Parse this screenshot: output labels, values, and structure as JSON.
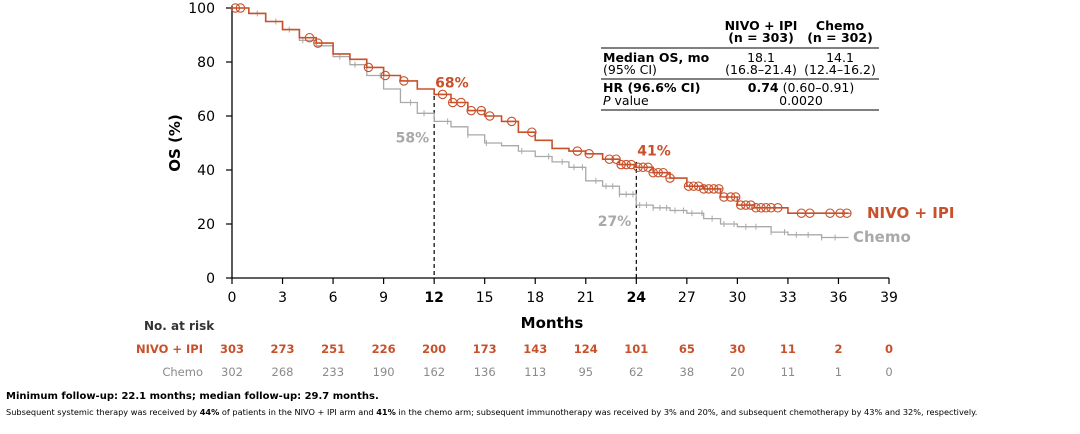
{
  "chart_data": {
    "type": "line",
    "subtype": "kaplan-meier",
    "ylabel": "OS (%)",
    "xlabel": "Months",
    "ylim": [
      0,
      100
    ],
    "xlim": [
      0,
      39
    ],
    "yticks": [
      0,
      20,
      40,
      60,
      80,
      100
    ],
    "xticks": [
      0,
      3,
      6,
      9,
      12,
      15,
      18,
      21,
      24,
      27,
      30,
      33,
      36,
      39
    ],
    "bold_xticks": [
      12,
      24
    ],
    "colors": {
      "nivo": "#c8502a",
      "chemo": "#a9a9a9"
    },
    "series": [
      {
        "name": "NIVO + IPI",
        "key": "nivo",
        "x": [
          0,
          0.5,
          1,
          2,
          3,
          4,
          5,
          6,
          7,
          8,
          9,
          10,
          11,
          12,
          13,
          14,
          15,
          16,
          17,
          18,
          19,
          20,
          21,
          22,
          23,
          24,
          25,
          26,
          27,
          28,
          29,
          30,
          31,
          32,
          33,
          34,
          35,
          36.6
        ],
        "values": [
          100,
          100,
          98,
          95,
          92,
          89,
          87,
          83,
          81,
          78,
          75,
          73,
          70,
          68,
          65,
          62,
          60,
          58,
          54,
          51,
          48,
          47,
          46,
          44,
          42,
          41,
          39,
          37,
          34,
          33,
          30,
          27,
          26,
          26,
          24,
          24,
          24,
          24
        ],
        "censor_x": [
          0.2,
          0.5,
          4.6,
          5.1,
          8.1,
          9.1,
          10.2,
          12.5,
          13.1,
          13.6,
          14.2,
          14.8,
          15.3,
          16.6,
          17.8,
          20.5,
          21.2,
          22.4,
          22.8,
          23.1,
          23.4,
          23.7,
          24.1,
          24.4,
          24.7,
          25.0,
          25.3,
          25.6,
          26.0,
          27.1,
          27.4,
          27.7,
          28.0,
          28.3,
          28.6,
          28.9,
          29.2,
          29.6,
          29.9,
          30.2,
          30.5,
          30.8,
          31.1,
          31.4,
          31.7,
          32.0,
          32.4,
          33.8,
          34.3,
          35.5,
          36.1,
          36.5
        ],
        "end_label": "NIVO + IPI",
        "landmarks": [
          {
            "month": 12,
            "value": 68,
            "label": "68%"
          },
          {
            "month": 24,
            "value": 41,
            "label": "41%"
          }
        ]
      },
      {
        "name": "Chemo",
        "key": "chemo",
        "x": [
          0,
          0.5,
          1,
          2,
          3,
          4,
          5,
          6,
          7,
          8,
          9,
          10,
          11,
          12,
          13,
          14,
          15,
          16,
          17,
          18,
          19,
          20,
          21,
          22,
          23,
          24,
          25,
          26,
          27,
          28,
          29,
          30,
          31,
          32,
          33,
          34,
          35,
          36.6
        ],
        "values": [
          100,
          100,
          98,
          95,
          92,
          88,
          86,
          82,
          79,
          75,
          70,
          65,
          61,
          58,
          56,
          53,
          50,
          49,
          47,
          45,
          43,
          41,
          36,
          34,
          31,
          27,
          26,
          25,
          24,
          22,
          20,
          19,
          19,
          17,
          16,
          16,
          15,
          15
        ],
        "censor_x": [
          1.5,
          2.6,
          3.4,
          4.2,
          6.4,
          7.3,
          8.8,
          10.6,
          11.4,
          12.8,
          14.0,
          15.1,
          17.2,
          18.8,
          19.6,
          20.3,
          20.8,
          21.6,
          22.2,
          22.6,
          23.0,
          23.4,
          23.8,
          24.2,
          24.6,
          25.0,
          25.4,
          25.8,
          26.3,
          26.8,
          27.3,
          27.9,
          28.5,
          29.2,
          29.8,
          30.5,
          31.1,
          32.0,
          32.8,
          33.5,
          34.2,
          35.0,
          35.8
        ],
        "end_label": "Chemo",
        "landmarks": [
          {
            "month": 12,
            "value": 58,
            "label": "58%"
          },
          {
            "month": 24,
            "value": 27,
            "label": "27%"
          }
        ]
      }
    ],
    "summary_table": {
      "col_headers": [
        [
          "NIVO + IPI",
          "(n = 303)"
        ],
        [
          "Chemo",
          "(n = 302)"
        ]
      ],
      "rows": [
        {
          "label": [
            "Median OS, mo",
            "(95% CI)"
          ],
          "nivo": [
            "18.1",
            "(16.8–21.4)"
          ],
          "chemo": [
            "14.1",
            "(12.4–16.2)"
          ]
        },
        {
          "label": [
            "HR (96.6% CI)",
            "P value"
          ],
          "hr_bold": "0.74",
          "hr_ci": "(0.60–0.91)",
          "p": "0.0020"
        }
      ]
    },
    "risk_table": {
      "title": "No. at risk",
      "rows": [
        {
          "label": "NIVO + IPI",
          "key": "nivo",
          "values": [
            303,
            273,
            251,
            226,
            200,
            173,
            143,
            124,
            101,
            65,
            30,
            11,
            2,
            0
          ]
        },
        {
          "label": "Chemo",
          "key": "chemo",
          "values": [
            302,
            268,
            233,
            190,
            162,
            136,
            113,
            95,
            62,
            38,
            20,
            11,
            1,
            0
          ]
        }
      ]
    }
  },
  "footnotes": {
    "main": "Minimum follow-up: 22.1 months; median follow-up: 29.7 months.",
    "sub": [
      {
        "t": "Subsequent systemic therapy was received by ",
        "b": false
      },
      {
        "t": "44%",
        "b": true
      },
      {
        "t": " of patients in the NIVO + IPI arm and ",
        "b": false
      },
      {
        "t": "41%",
        "b": true
      },
      {
        "t": " in the chemo arm; subsequent immunotherapy was received by 3% and 20%, and subsequent chemotherapy by 43% and 32%, respectively.",
        "b": false
      }
    ]
  }
}
